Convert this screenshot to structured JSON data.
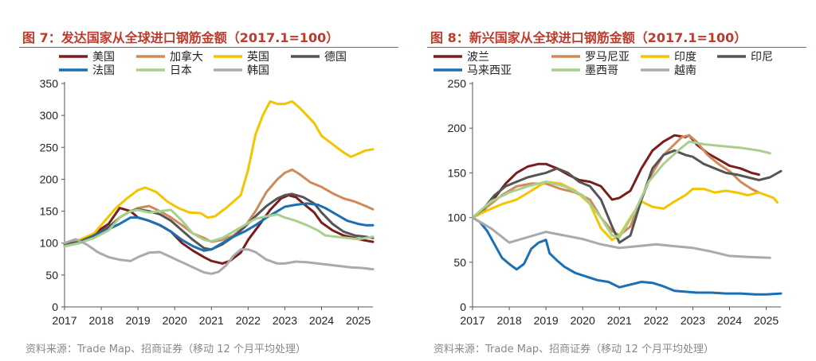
{
  "colors": {
    "title": "#c0392b",
    "axis": "#555555",
    "source": "#888888"
  },
  "chart_data": [
    {
      "type": "line",
      "title": "图 7：发达国家从全球进口钢筋金额（2017.1=100）",
      "source": "资料来源：Trade Map、招商证券（移动 12 个月平均处理）",
      "xlabel": "",
      "ylabel": "",
      "xlim": [
        2017,
        2025.4
      ],
      "ylim": [
        0,
        350
      ],
      "yticks": [
        "0",
        "50",
        "100",
        "150",
        "200",
        "250",
        "300",
        "350"
      ],
      "xticks": [
        "2017",
        "2018",
        "2019",
        "2020",
        "2021",
        "2022",
        "2023",
        "2024",
        "2025"
      ],
      "legend": "top",
      "series": [
        {
          "name": "美国",
          "color": "#7b1d1d",
          "x": [
            2017,
            2017.5,
            2017.8,
            2018.2,
            2018.5,
            2018.8,
            2019,
            2019.3,
            2019.6,
            2019.9,
            2020.2,
            2020.5,
            2020.8,
            2021,
            2021.3,
            2021.5,
            2021.8,
            2022,
            2022.3,
            2022.6,
            2022.9,
            2023.1,
            2023.3,
            2023.5,
            2023.8,
            2024,
            2024.3,
            2024.6,
            2024.9,
            2025.1,
            2025.4
          ],
          "y": [
            98,
            102,
            115,
            130,
            155,
            150,
            140,
            135,
            128,
            118,
            100,
            88,
            78,
            72,
            68,
            72,
            85,
            105,
            128,
            152,
            170,
            175,
            172,
            162,
            148,
            132,
            120,
            112,
            108,
            105,
            102
          ]
        },
        {
          "name": "加拿大",
          "color": "#d08a5a",
          "x": [
            2017,
            2017.5,
            2017.8,
            2018.2,
            2018.5,
            2018.8,
            2019,
            2019.3,
            2019.6,
            2019.9,
            2020.2,
            2020.5,
            2020.8,
            2021,
            2021.3,
            2021.6,
            2021.9,
            2022.2,
            2022.5,
            2022.8,
            2023,
            2023.2,
            2023.4,
            2023.7,
            2024,
            2024.3,
            2024.6,
            2024.9,
            2025.2,
            2025.4
          ],
          "y": [
            98,
            105,
            112,
            120,
            140,
            150,
            155,
            158,
            150,
            140,
            128,
            115,
            108,
            102,
            105,
            112,
            125,
            150,
            180,
            200,
            210,
            215,
            208,
            195,
            188,
            178,
            170,
            165,
            158,
            153
          ]
        },
        {
          "name": "英国",
          "color": "#f5c400",
          "x": [
            2017,
            2017.4,
            2017.8,
            2018.1,
            2018.4,
            2018.7,
            2019,
            2019.2,
            2019.5,
            2019.8,
            2020.1,
            2020.4,
            2020.7,
            2020.9,
            2021.1,
            2021.4,
            2021.6,
            2021.8,
            2022,
            2022.2,
            2022.4,
            2022.6,
            2022.8,
            2023,
            2023.2,
            2023.4,
            2023.6,
            2023.8,
            2024,
            2024.3,
            2024.6,
            2024.8,
            2025,
            2025.2,
            2025.4
          ],
          "y": [
            98,
            105,
            115,
            135,
            155,
            170,
            183,
            187,
            180,
            165,
            155,
            148,
            147,
            140,
            142,
            155,
            165,
            175,
            215,
            270,
            300,
            322,
            318,
            318,
            322,
            312,
            300,
            288,
            268,
            255,
            242,
            235,
            240,
            245,
            247
          ]
        },
        {
          "name": "德国",
          "color": "#555555",
          "x": [
            2017,
            2017.4,
            2017.8,
            2018.2,
            2018.5,
            2018.8,
            2019,
            2019.3,
            2019.6,
            2019.9,
            2020.2,
            2020.5,
            2020.8,
            2021,
            2021.3,
            2021.6,
            2021.9,
            2022.2,
            2022.5,
            2022.8,
            2023,
            2023.2,
            2023.5,
            2023.8,
            2024,
            2024.3,
            2024.6,
            2024.9,
            2025.2,
            2025.4
          ],
          "y": [
            98,
            102,
            112,
            125,
            140,
            150,
            153,
            150,
            145,
            135,
            120,
            105,
            92,
            90,
            98,
            110,
            125,
            142,
            158,
            170,
            175,
            177,
            172,
            162,
            148,
            130,
            118,
            112,
            110,
            108
          ]
        },
        {
          "name": "法国",
          "color": "#1b6fb5",
          "x": [
            2017,
            2017.4,
            2017.8,
            2018.2,
            2018.5,
            2018.8,
            2019,
            2019.3,
            2019.6,
            2019.9,
            2020.2,
            2020.5,
            2020.8,
            2021,
            2021.3,
            2021.6,
            2021.9,
            2022.2,
            2022.5,
            2022.8,
            2023,
            2023.3,
            2023.6,
            2023.9,
            2024.1,
            2024.4,
            2024.7,
            2025,
            2025.2,
            2025.4
          ],
          "y": [
            95,
            100,
            110,
            122,
            130,
            140,
            140,
            135,
            128,
            118,
            105,
            95,
            88,
            90,
            100,
            110,
            118,
            128,
            140,
            150,
            157,
            160,
            162,
            160,
            155,
            145,
            135,
            130,
            128,
            128
          ]
        },
        {
          "name": "日本",
          "color": "#a8d08d",
          "x": [
            2017,
            2017.4,
            2017.8,
            2018.2,
            2018.5,
            2018.8,
            2019,
            2019.3,
            2019.6,
            2019.9,
            2020.2,
            2020.5,
            2020.8,
            2021,
            2021.3,
            2021.6,
            2021.9,
            2022.2,
            2022.5,
            2022.8,
            2023,
            2023.3,
            2023.6,
            2023.9,
            2024.1,
            2024.4,
            2024.7,
            2025,
            2025.2,
            2025.4
          ],
          "y": [
            95,
            100,
            108,
            120,
            140,
            150,
            152,
            148,
            150,
            152,
            135,
            115,
            105,
            103,
            108,
            118,
            128,
            138,
            142,
            145,
            140,
            135,
            128,
            120,
            112,
            110,
            108,
            106,
            108,
            110
          ]
        },
        {
          "name": "韩国",
          "color": "#aaaaaa",
          "x": [
            2017,
            2017.3,
            2017.6,
            2017.9,
            2018.2,
            2018.5,
            2018.8,
            2019,
            2019.3,
            2019.6,
            2019.9,
            2020.2,
            2020.5,
            2020.8,
            2021,
            2021.2,
            2021.4,
            2021.6,
            2021.8,
            2022,
            2022.2,
            2022.5,
            2022.8,
            2023,
            2023.3,
            2023.6,
            2023.9,
            2024.2,
            2024.5,
            2024.8,
            2025.1,
            2025.4
          ],
          "y": [
            100,
            106,
            98,
            86,
            78,
            74,
            72,
            78,
            85,
            86,
            78,
            70,
            62,
            54,
            52,
            55,
            65,
            80,
            90,
            90,
            86,
            74,
            68,
            68,
            71,
            70,
            68,
            66,
            64,
            62,
            61,
            59
          ]
        }
      ]
    },
    {
      "type": "line",
      "title": "图 8：新兴国家从全球进口钢筋金额（2017.1=100）",
      "source": "资料来源：Trade Map、招商证券（移动 12 个月平均处理）",
      "xlabel": "",
      "ylabel": "",
      "xlim": [
        2017,
        2025.4
      ],
      "ylim": [
        0,
        250
      ],
      "yticks": [
        "0",
        "50",
        "100",
        "150",
        "200",
        "250"
      ],
      "xticks": [
        "2017",
        "2018",
        "2019",
        "2020",
        "2021",
        "2022",
        "2023",
        "2024",
        "2025"
      ],
      "legend": "top",
      "series": [
        {
          "name": "波兰",
          "color": "#7b1d1d",
          "x": [
            2017,
            2017.3,
            2017.6,
            2017.9,
            2018.2,
            2018.5,
            2018.8,
            2019,
            2019.3,
            2019.6,
            2019.9,
            2020.2,
            2020.5,
            2020.8,
            2021,
            2021.3,
            2021.6,
            2021.9,
            2022.2,
            2022.5,
            2022.8,
            2022.9,
            2023.1,
            2023.4,
            2023.7,
            2024,
            2024.3,
            2024.6,
            2024.8
          ],
          "y": [
            100,
            108,
            122,
            138,
            150,
            157,
            160,
            160,
            155,
            148,
            142,
            140,
            135,
            120,
            122,
            130,
            155,
            175,
            185,
            192,
            190,
            192,
            182,
            172,
            165,
            158,
            155,
            150,
            148
          ]
        },
        {
          "name": "罗马尼亚",
          "color": "#d08a5a",
          "x": [
            2017,
            2017.4,
            2017.8,
            2018.2,
            2018.6,
            2019,
            2019.4,
            2019.8,
            2020.2,
            2020.5,
            2020.8,
            2021,
            2021.3,
            2021.6,
            2021.9,
            2022.2,
            2022.5,
            2022.7,
            2022.9,
            2023.1,
            2023.4,
            2023.7,
            2024,
            2024.3,
            2024.6,
            2024.8
          ],
          "y": [
            100,
            112,
            125,
            135,
            138,
            138,
            132,
            128,
            120,
            100,
            85,
            80,
            90,
            120,
            150,
            170,
            182,
            190,
            192,
            185,
            170,
            160,
            152,
            140,
            132,
            128
          ]
        },
        {
          "name": "印度",
          "color": "#f5c400",
          "x": [
            2017,
            2017.4,
            2017.8,
            2018.2,
            2018.6,
            2019,
            2019.4,
            2019.8,
            2020.2,
            2020.5,
            2020.8,
            2021,
            2021.3,
            2021.6,
            2021.9,
            2022.2,
            2022.5,
            2022.8,
            2023,
            2023.3,
            2023.6,
            2023.9,
            2024.2,
            2024.5,
            2024.8,
            2025,
            2025.2,
            2025.3
          ],
          "y": [
            100,
            108,
            115,
            120,
            130,
            140,
            138,
            130,
            115,
            88,
            75,
            80,
            100,
            118,
            112,
            110,
            118,
            125,
            132,
            132,
            128,
            130,
            128,
            125,
            128,
            125,
            122,
            117
          ]
        },
        {
          "name": "印尼",
          "color": "#555555",
          "x": [
            2017,
            2017.3,
            2017.6,
            2017.9,
            2018.2,
            2018.5,
            2018.8,
            2019,
            2019.3,
            2019.6,
            2019.9,
            2020.2,
            2020.5,
            2020.8,
            2021,
            2021.3,
            2021.6,
            2021.9,
            2022.2,
            2022.5,
            2022.8,
            2023,
            2023.3,
            2023.6,
            2023.9,
            2024.2,
            2024.5,
            2024.8,
            2025.1,
            2025.4
          ],
          "y": [
            100,
            110,
            125,
            135,
            140,
            145,
            148,
            150,
            155,
            150,
            140,
            135,
            120,
            90,
            72,
            80,
            120,
            155,
            170,
            175,
            170,
            168,
            160,
            155,
            150,
            148,
            145,
            142,
            145,
            152
          ]
        },
        {
          "name": "马来西亚",
          "color": "#1b6fb5",
          "x": [
            2017,
            2017.2,
            2017.4,
            2017.6,
            2017.8,
            2018,
            2018.2,
            2018.4,
            2018.6,
            2018.8,
            2019,
            2019.1,
            2019.3,
            2019.5,
            2019.8,
            2020.1,
            2020.4,
            2020.7,
            2021,
            2021.3,
            2021.6,
            2021.9,
            2022.2,
            2022.5,
            2022.8,
            2023.1,
            2023.5,
            2023.9,
            2024.3,
            2024.7,
            2025,
            2025.4
          ],
          "y": [
            100,
            95,
            85,
            70,
            55,
            48,
            42,
            48,
            65,
            72,
            75,
            60,
            52,
            45,
            38,
            34,
            30,
            28,
            22,
            25,
            28,
            27,
            23,
            18,
            17,
            16,
            16,
            15,
            15,
            14,
            14,
            15
          ]
        },
        {
          "name": "墨西哥",
          "color": "#a8d08d",
          "x": [
            2017,
            2017.5,
            2018,
            2018.5,
            2019,
            2019.5,
            2020,
            2020.5,
            2020.8,
            2021,
            2021.4,
            2021.8,
            2022.2,
            2022.6,
            2022.9,
            2023.3,
            2023.8,
            2024.3,
            2024.8,
            2025.1
          ],
          "y": [
            100,
            118,
            128,
            135,
            140,
            135,
            125,
            100,
            80,
            78,
            105,
            140,
            160,
            175,
            185,
            182,
            180,
            178,
            175,
            172
          ]
        },
        {
          "name": "越南",
          "color": "#aaaaaa",
          "x": [
            2017,
            2017.5,
            2018,
            2018.5,
            2019,
            2019.5,
            2020,
            2020.5,
            2021,
            2021.5,
            2022,
            2022.5,
            2023,
            2023.5,
            2024,
            2024.5,
            2025.1
          ],
          "y": [
            100,
            88,
            72,
            78,
            84,
            80,
            76,
            70,
            66,
            68,
            70,
            68,
            66,
            62,
            57,
            56,
            55
          ]
        }
      ]
    }
  ]
}
